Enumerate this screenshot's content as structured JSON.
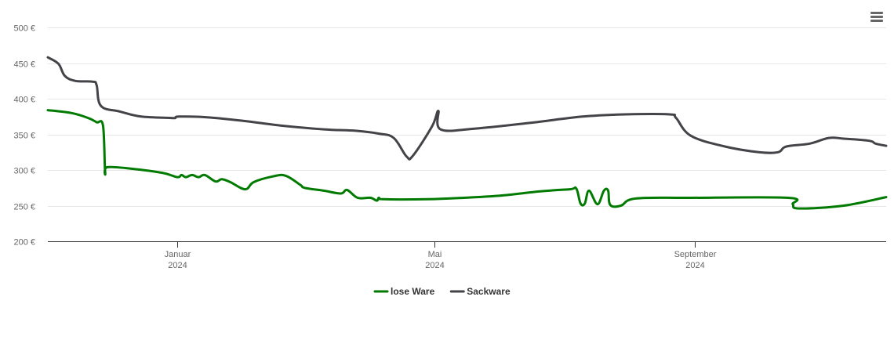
{
  "menu": {
    "icon": "hamburger-menu-icon"
  },
  "chart_data": {
    "type": "line",
    "x_axis": {
      "type": "datetime",
      "range": [
        "2023-11-01",
        "2024-11-30"
      ],
      "ticks": [
        {
          "date": "2024-01-01",
          "month": "Januar",
          "year": "2024"
        },
        {
          "date": "2024-05-01",
          "month": "Mai",
          "year": "2024"
        },
        {
          "date": "2024-09-01",
          "month": "September",
          "year": "2024"
        }
      ]
    },
    "y_axis": {
      "ylim": [
        200,
        500
      ],
      "ticks": [
        200,
        250,
        300,
        350,
        400,
        450,
        500
      ],
      "tick_labels": [
        "200 €",
        "250 €",
        "300 €",
        "350 €",
        "400 €",
        "450 €",
        "500 €"
      ]
    },
    "grid": true,
    "legend_position": "bottom-center",
    "series": [
      {
        "name": "lose Ware",
        "color": "#007a00",
        "points": [
          [
            "2023-11-01",
            384
          ],
          [
            "2023-11-12",
            380
          ],
          [
            "2023-11-20",
            373
          ],
          [
            "2023-11-24",
            367
          ],
          [
            "2023-11-27",
            362
          ],
          [
            "2023-11-28",
            297
          ],
          [
            "2023-11-29",
            304
          ],
          [
            "2023-12-10",
            302
          ],
          [
            "2023-12-25",
            296
          ],
          [
            "2024-01-01",
            290
          ],
          [
            "2024-01-03",
            293
          ],
          [
            "2024-01-05",
            290
          ],
          [
            "2024-01-08",
            293
          ],
          [
            "2024-01-11",
            290
          ],
          [
            "2024-01-14",
            293
          ],
          [
            "2024-01-19",
            284
          ],
          [
            "2024-01-22",
            287
          ],
          [
            "2024-01-26",
            283
          ],
          [
            "2024-02-02",
            273
          ],
          [
            "2024-02-06",
            283
          ],
          [
            "2024-02-15",
            291
          ],
          [
            "2024-02-21",
            292
          ],
          [
            "2024-02-28",
            279
          ],
          [
            "2024-03-01",
            275
          ],
          [
            "2024-03-10",
            271
          ],
          [
            "2024-03-18",
            267
          ],
          [
            "2024-03-21",
            272
          ],
          [
            "2024-03-26",
            261
          ],
          [
            "2024-04-01",
            261
          ],
          [
            "2024-04-04",
            257
          ],
          [
            "2024-04-05",
            261
          ],
          [
            "2024-04-07",
            259
          ],
          [
            "2024-04-28",
            259
          ],
          [
            "2024-05-15",
            261
          ],
          [
            "2024-06-01",
            264
          ],
          [
            "2024-06-20",
            270
          ],
          [
            "2024-07-04",
            273
          ],
          [
            "2024-07-07",
            274
          ],
          [
            "2024-07-09",
            253
          ],
          [
            "2024-07-11",
            253
          ],
          [
            "2024-07-13",
            271
          ],
          [
            "2024-07-17",
            252
          ],
          [
            "2024-07-20",
            271
          ],
          [
            "2024-07-22",
            271
          ],
          [
            "2024-07-23",
            251
          ],
          [
            "2024-07-28",
            250
          ],
          [
            "2024-08-04",
            260
          ],
          [
            "2024-08-30",
            261
          ],
          [
            "2024-10-15",
            261
          ],
          [
            "2024-10-17",
            252
          ],
          [
            "2024-10-20",
            246
          ],
          [
            "2024-11-10",
            250
          ],
          [
            "2024-11-30",
            262
          ]
        ]
      },
      {
        "name": "Sackware",
        "color": "#434348",
        "points": [
          [
            "2023-11-01",
            458
          ],
          [
            "2023-11-06",
            449
          ],
          [
            "2023-11-09",
            432
          ],
          [
            "2023-11-14",
            425
          ],
          [
            "2023-11-22",
            424
          ],
          [
            "2023-11-24",
            419
          ],
          [
            "2023-11-26",
            390
          ],
          [
            "2023-12-05",
            382
          ],
          [
            "2023-12-15",
            375
          ],
          [
            "2023-12-29",
            373
          ],
          [
            "2023-12-31",
            373
          ],
          [
            "2024-01-02",
            375
          ],
          [
            "2024-01-15",
            374
          ],
          [
            "2024-02-01",
            369
          ],
          [
            "2024-02-20",
            362
          ],
          [
            "2024-03-10",
            357
          ],
          [
            "2024-03-25",
            355
          ],
          [
            "2024-04-05",
            351
          ],
          [
            "2024-04-12",
            345
          ],
          [
            "2024-04-18",
            319
          ],
          [
            "2024-04-21",
            320
          ],
          [
            "2024-04-30",
            361
          ],
          [
            "2024-05-03",
            383
          ],
          [
            "2024-05-04",
            357
          ],
          [
            "2024-05-20",
            358
          ],
          [
            "2024-06-15",
            366
          ],
          [
            "2024-07-10",
            375
          ],
          [
            "2024-07-30",
            378
          ],
          [
            "2024-08-20",
            378
          ],
          [
            "2024-08-23",
            373
          ],
          [
            "2024-08-30",
            348
          ],
          [
            "2024-09-15",
            333
          ],
          [
            "2024-10-01",
            325
          ],
          [
            "2024-10-10",
            325
          ],
          [
            "2024-10-14",
            333
          ],
          [
            "2024-10-25",
            337
          ],
          [
            "2024-11-03",
            345
          ],
          [
            "2024-11-10",
            344
          ],
          [
            "2024-11-22",
            341
          ],
          [
            "2024-11-25",
            337
          ],
          [
            "2024-11-30",
            334
          ]
        ]
      }
    ]
  }
}
